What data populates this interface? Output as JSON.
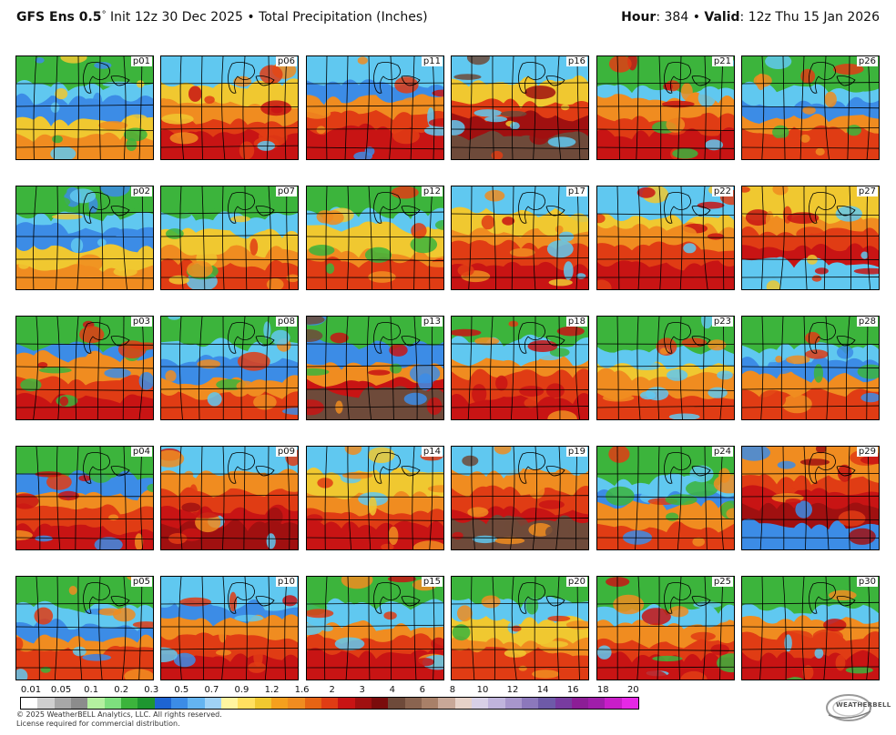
{
  "header": {
    "model": "GFS Ens 0.5",
    "degree": "°",
    "init": "Init 12z 30 Dec 2025",
    "bullet": "•",
    "product": "Total Precipitation (Inches)",
    "hour_label": "Hour",
    "hour_value": ": 384",
    "valid_label": "Valid",
    "valid_value": ": 12z Thu 15 Jan 2026"
  },
  "panels": [
    {
      "label": "p01",
      "theme": [
        "#3cb43c",
        "#60c8f0",
        "#3c8ce6",
        "#f0c830",
        "#f08c20"
      ]
    },
    {
      "label": "p06",
      "theme": [
        "#60c8f0",
        "#f0c830",
        "#f08c20",
        "#e03c14",
        "#c81414"
      ]
    },
    {
      "label": "p11",
      "theme": [
        "#60c8f0",
        "#3c8ce6",
        "#f08c20",
        "#e03c14",
        "#c81414"
      ]
    },
    {
      "label": "p16",
      "theme": [
        "#60c8f0",
        "#f0c830",
        "#e03c14",
        "#a01010",
        "#6e4a3a"
      ]
    },
    {
      "label": "p21",
      "theme": [
        "#3cb43c",
        "#60c8f0",
        "#f08c20",
        "#e03c14",
        "#c81414"
      ]
    },
    {
      "label": "p26",
      "theme": [
        "#3cb43c",
        "#60c8f0",
        "#3c8ce6",
        "#f08c20",
        "#e03c14"
      ]
    },
    {
      "label": "p02",
      "theme": [
        "#3cb43c",
        "#60c8f0",
        "#3c8ce6",
        "#f0c830",
        "#f08c20"
      ]
    },
    {
      "label": "p07",
      "theme": [
        "#3cb43c",
        "#60c8f0",
        "#f0c830",
        "#f08c20",
        "#e03c14"
      ]
    },
    {
      "label": "p12",
      "theme": [
        "#3cb43c",
        "#60c8f0",
        "#f0c830",
        "#f08c20",
        "#e03c14"
      ]
    },
    {
      "label": "p17",
      "theme": [
        "#60c8f0",
        "#f0c830",
        "#f08c20",
        "#e03c14",
        "#c81414"
      ]
    },
    {
      "label": "p22",
      "theme": [
        "#60c8f0",
        "#f0c830",
        "#f08c20",
        "#e03c14",
        "#c81414"
      ]
    },
    {
      "label": "p27",
      "theme": [
        "#f0c830",
        "#f08c20",
        "#e03c14",
        "#c81414",
        "#60c8f0"
      ]
    },
    {
      "label": "p03",
      "theme": [
        "#3cb43c",
        "#3c8ce6",
        "#f08c20",
        "#e03c14",
        "#c81414"
      ]
    },
    {
      "label": "p08",
      "theme": [
        "#3cb43c",
        "#60c8f0",
        "#3c8ce6",
        "#f08c20",
        "#e03c14"
      ]
    },
    {
      "label": "p13",
      "theme": [
        "#3cb43c",
        "#3c8ce6",
        "#f08c20",
        "#c81414",
        "#6e4a3a"
      ]
    },
    {
      "label": "p18",
      "theme": [
        "#3cb43c",
        "#60c8f0",
        "#f08c20",
        "#e03c14",
        "#c81414"
      ]
    },
    {
      "label": "p23",
      "theme": [
        "#3cb43c",
        "#60c8f0",
        "#f0c830",
        "#f08c20",
        "#e03c14"
      ]
    },
    {
      "label": "p28",
      "theme": [
        "#3cb43c",
        "#60c8f0",
        "#3c8ce6",
        "#f08c20",
        "#e03c14"
      ]
    },
    {
      "label": "p04",
      "theme": [
        "#3cb43c",
        "#3c8ce6",
        "#f08c20",
        "#e03c14",
        "#c81414"
      ]
    },
    {
      "label": "p09",
      "theme": [
        "#60c8f0",
        "#f08c20",
        "#e03c14",
        "#c81414",
        "#a01010"
      ]
    },
    {
      "label": "p14",
      "theme": [
        "#60c8f0",
        "#f0c830",
        "#f08c20",
        "#e03c14",
        "#c81414"
      ]
    },
    {
      "label": "p19",
      "theme": [
        "#60c8f0",
        "#f08c20",
        "#e03c14",
        "#c81414",
        "#6e4a3a"
      ]
    },
    {
      "label": "p24",
      "theme": [
        "#3cb43c",
        "#60c8f0",
        "#3c8ce6",
        "#f08c20",
        "#e03c14"
      ]
    },
    {
      "label": "p29",
      "theme": [
        "#f08c20",
        "#e03c14",
        "#c81414",
        "#a01010",
        "#3c8ce6"
      ]
    },
    {
      "label": "p05",
      "theme": [
        "#3cb43c",
        "#60c8f0",
        "#3c8ce6",
        "#f08c20",
        "#e03c14"
      ]
    },
    {
      "label": "p10",
      "theme": [
        "#60c8f0",
        "#3c8ce6",
        "#f08c20",
        "#e03c14",
        "#c81414"
      ]
    },
    {
      "label": "p15",
      "theme": [
        "#3cb43c",
        "#60c8f0",
        "#f08c20",
        "#e03c14",
        "#c81414"
      ]
    },
    {
      "label": "p20",
      "theme": [
        "#3cb43c",
        "#60c8f0",
        "#f0c830",
        "#f08c20",
        "#e03c14"
      ]
    },
    {
      "label": "p25",
      "theme": [
        "#3cb43c",
        "#60c8f0",
        "#f08c20",
        "#e03c14",
        "#c81414"
      ]
    },
    {
      "label": "p30",
      "theme": [
        "#3cb43c",
        "#60c8f0",
        "#f08c20",
        "#e03c14",
        "#c81414"
      ]
    }
  ],
  "colorbar": {
    "labels": [
      "0.01",
      "0.05",
      "0.1",
      "0.2",
      "0.3",
      "0.5",
      "0.7",
      "0.9",
      "1.2",
      "1.6",
      "2",
      "3",
      "4",
      "6",
      "8",
      "10",
      "12",
      "14",
      "16",
      "18",
      "20"
    ],
    "colors": [
      "#ffffff",
      "#cfcfcf",
      "#a8a8a8",
      "#8c8c8c",
      "#b4f0a0",
      "#7ee07e",
      "#3cb43c",
      "#1e9630",
      "#1e64d2",
      "#3c8ce6",
      "#64b4f0",
      "#a0d2f5",
      "#fff5a0",
      "#ffe060",
      "#f0c830",
      "#f5a01e",
      "#f08c20",
      "#e66414",
      "#e03c14",
      "#c81414",
      "#a01010",
      "#7a0c0c",
      "#6e4a3a",
      "#8a6450",
      "#a88068",
      "#c8a898",
      "#e6d2c8",
      "#d8d0e6",
      "#c0b4dc",
      "#a896cc",
      "#8c78bc",
      "#6e5aa8",
      "#783ca0",
      "#8c1e96",
      "#a01eaa",
      "#c81ec8",
      "#e628e6"
    ]
  },
  "footer": {
    "line1": "© 2025 WeatherBELL Analytics, LLC. All rights reserved.",
    "line2": "License required for commercial distribution."
  },
  "logo": {
    "icon": "weatherbell-logo",
    "text": "WEATHERBELL"
  }
}
